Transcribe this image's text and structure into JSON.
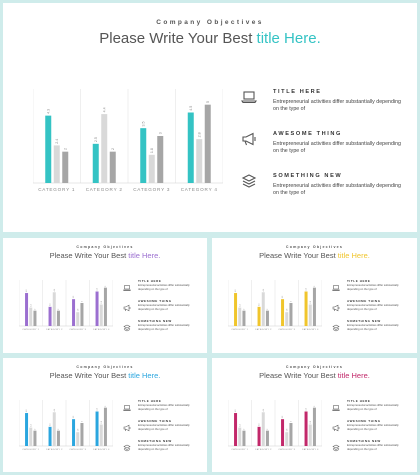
{
  "slide": {
    "subtitle": "Company Objectives",
    "title_plain": "Please Write Your Best ",
    "title_accent": "title Here."
  },
  "items": [
    {
      "heading": "TITLE HERE",
      "body": "Entrepreneurial activities differ substantially depending on the type of",
      "icon": "laptop-icon"
    },
    {
      "heading": "AWESOME THING",
      "body": "Entrepreneurial activities differ substantially depending on the type of",
      "icon": "megaphone-icon"
    },
    {
      "heading": "SOMETHING NEW",
      "body": "Entrepreneurial activities differ substantially depending on the type of",
      "icon": "layers-icon"
    }
  ],
  "variants": {
    "main": {
      "accent": "#34c3c4"
    },
    "t1": {
      "accent": "#9b6fd0"
    },
    "t2": {
      "accent": "#f0c52c"
    },
    "t3": {
      "accent": "#2aa6df"
    },
    "t4": {
      "accent": "#c2286a"
    }
  },
  "chart_data": {
    "type": "bar",
    "categories": [
      "CATEGORY 1",
      "CATEGORY 2",
      "CATEGORY 3",
      "CATEGORY 4"
    ],
    "series": [
      {
        "values": [
          4.3,
          2.5,
          3.5,
          4.5
        ]
      },
      {
        "values": [
          2.4,
          4.4,
          1.8,
          2.8
        ]
      },
      {
        "values": [
          2.0,
          2.0,
          3.0,
          5.0
        ]
      }
    ],
    "data_labels": [
      [
        "4.3",
        "2.4",
        "2"
      ],
      [
        "2.5",
        "4.4",
        "2"
      ],
      [
        "3.5",
        "1.8",
        "3"
      ],
      [
        "4.5",
        "2.8",
        "5"
      ]
    ],
    "series_colors": [
      "accent",
      "#d9d9d9",
      "#a6a6a6"
    ],
    "ylim": [
      0,
      6
    ],
    "grid": false
  }
}
